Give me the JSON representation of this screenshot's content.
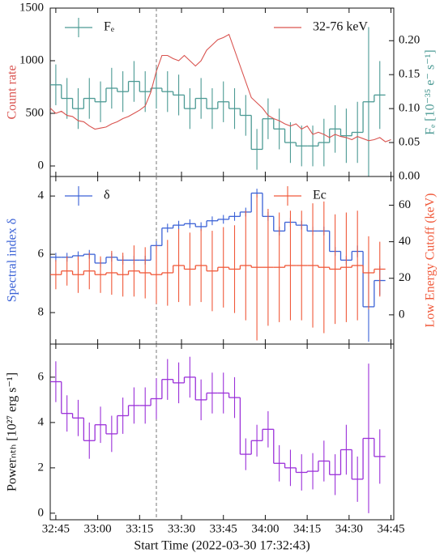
{
  "chart_data": [
    {
      "type": "line",
      "ylabel": "Count rate",
      "ylabel_color": "#d9534f",
      "y2label": "Fₑ [10⁻³⁵ e⁻ s⁻¹]",
      "y2label_color": "#4c9a94",
      "xlim": [
        0,
        123
      ],
      "xticks": [
        {
          "value": 2,
          "label": "32:45"
        },
        {
          "value": 17,
          "label": "33:00"
        },
        {
          "value": 32,
          "label": "33:15"
        },
        {
          "value": 47,
          "label": "33:30"
        },
        {
          "value": 62,
          "label": "33:45"
        },
        {
          "value": 77,
          "label": "34:00"
        },
        {
          "value": 92,
          "label": "34:15"
        },
        {
          "value": 107,
          "label": "34:30"
        },
        {
          "value": 122,
          "label": "34:45"
        }
      ],
      "ylim": [
        -100,
        1500
      ],
      "yticks": [
        0,
        500,
        1000,
        1500
      ],
      "y2lim": [
        0,
        0.248
      ],
      "y2ticks": [
        {
          "value": 0,
          "label": "0.00"
        },
        {
          "value": 0.05,
          "label": "0.05"
        },
        {
          "value": 0.1,
          "label": "0.10"
        },
        {
          "value": 0.15,
          "label": "0.15"
        },
        {
          "value": 0.2,
          "label": "0.20"
        }
      ],
      "vline": 38,
      "series": [
        {
          "name": "Fₑ",
          "type": "step",
          "color": "#4c9a94",
          "axis": "y2",
          "legend": "upper left",
          "bins": [
            0,
            4,
            8,
            12,
            16,
            20,
            24,
            28,
            32,
            36,
            40,
            44,
            48,
            52,
            56,
            60,
            64,
            68,
            72,
            76,
            80,
            84,
            88,
            92,
            96,
            100,
            104,
            108,
            112,
            116,
            120
          ],
          "values": [
            0.135,
            0.115,
            0.1,
            0.115,
            0.11,
            0.13,
            0.125,
            0.14,
            0.125,
            0.13,
            0.125,
            0.12,
            0.1,
            0.115,
            0.1,
            0.11,
            0.1,
            0.09,
            0.04,
            0.085,
            0.07,
            0.05,
            0.045,
            0.045,
            0.05,
            0.07,
            0.06,
            0.065,
            0.11,
            0.12
          ],
          "errors": [
            0.03,
            0.03,
            0.03,
            0.03,
            0.03,
            0.03,
            0.03,
            0.03,
            0.03,
            0.03,
            0.03,
            0.03,
            0.03,
            0.03,
            0.03,
            0.03,
            0.03,
            0.03,
            0.03,
            0.03,
            0.03,
            0.03,
            0.03,
            0.03,
            0.035,
            0.035,
            0.04,
            0.045,
            0.11,
            0.05
          ]
        },
        {
          "name": "32-76 keV",
          "type": "line",
          "color": "#d9534f",
          "legend": "upper right",
          "x": [
            0,
            2,
            4,
            6,
            8,
            10,
            12,
            14,
            16,
            18,
            20,
            22,
            24,
            26,
            28,
            30,
            32,
            34,
            36,
            38,
            40,
            42,
            44,
            46,
            48,
            50,
            52,
            54,
            56,
            58,
            60,
            62,
            64,
            66,
            68,
            70,
            72,
            74,
            76,
            78,
            80,
            82,
            84,
            86,
            88,
            90,
            92,
            94,
            96,
            98,
            100,
            102,
            104,
            106,
            108,
            110,
            112,
            114,
            116,
            118,
            120,
            122
          ],
          "values": [
            550,
            500,
            520,
            480,
            470,
            430,
            420,
            380,
            350,
            360,
            370,
            400,
            420,
            450,
            470,
            500,
            530,
            570,
            700,
            900,
            1050,
            1050,
            1020,
            1000,
            1050,
            1000,
            950,
            1000,
            1100,
            1150,
            1200,
            1220,
            1250,
            1100,
            950,
            800,
            650,
            600,
            550,
            480,
            450,
            430,
            400,
            380,
            400,
            350,
            380,
            300,
            320,
            300,
            270,
            300,
            280,
            270,
            250,
            280,
            260,
            240,
            250,
            270,
            230,
            250
          ]
        }
      ]
    },
    {
      "type": "step",
      "ylabel": "Spectral index δ",
      "ylabel_color": "#3b62d6",
      "y2label": "Low Energy Cutoff (keV)",
      "y2label_color": "#f0593a",
      "xlim": [
        0,
        123
      ],
      "xticks": [
        2,
        17,
        32,
        47,
        62,
        77,
        92,
        107,
        122
      ],
      "ylim": [
        3.33,
        9.08
      ],
      "invert": true,
      "yticks": [
        4,
        6,
        8
      ],
      "y2lim": [
        -16,
        75.7
      ],
      "y2ticks": [
        0,
        20,
        40,
        60
      ],
      "vline": 38,
      "series": [
        {
          "name": "δ",
          "type": "step",
          "color": "#3b62d6",
          "legend": "upper left",
          "bins": [
            0,
            4,
            8,
            12,
            16,
            20,
            24,
            28,
            32,
            36,
            40,
            44,
            48,
            52,
            56,
            60,
            64,
            68,
            72,
            76,
            80,
            84,
            88,
            92,
            96,
            100,
            104,
            108,
            112,
            116,
            120
          ],
          "values": [
            6.1,
            6.1,
            6.05,
            6.0,
            6.3,
            6.1,
            6.2,
            6.2,
            6.2,
            5.7,
            5.1,
            5.0,
            4.95,
            5.05,
            4.85,
            4.8,
            4.7,
            4.55,
            3.9,
            4.7,
            5.2,
            4.9,
            5.0,
            5.2,
            5.2,
            5.9,
            6.2,
            5.9,
            7.8,
            6.9
          ],
          "errors": [
            0.15,
            0.15,
            0.15,
            0.15,
            0.15,
            0.15,
            0.15,
            0.15,
            0.15,
            0.15,
            0.15,
            0.15,
            0.15,
            0.15,
            0.15,
            0.15,
            0.15,
            0.15,
            0.15,
            0.15,
            0.15,
            0.15,
            0.15,
            0.15,
            0.15,
            0.15,
            0.15,
            0.2,
            1.2,
            0.5
          ]
        },
        {
          "name": "Ec",
          "type": "step",
          "color": "#f0593a",
          "axis": "y2",
          "legend": "upper right",
          "bins": [
            0,
            4,
            8,
            12,
            16,
            20,
            24,
            28,
            32,
            36,
            40,
            44,
            48,
            52,
            56,
            60,
            64,
            68,
            72,
            76,
            80,
            84,
            88,
            92,
            96,
            100,
            104,
            108,
            112,
            116,
            120
          ],
          "values": [
            22,
            24,
            22,
            24,
            22,
            23,
            22,
            24,
            23,
            22,
            23,
            27,
            25,
            27,
            24,
            26,
            25,
            27,
            26,
            26,
            26,
            27,
            27,
            27,
            26,
            25,
            26,
            27,
            23,
            25
          ],
          "errors": [
            8,
            8,
            10,
            10,
            10,
            12,
            12,
            14,
            14,
            16,
            18,
            20,
            20,
            20,
            22,
            22,
            24,
            30,
            40,
            32,
            30,
            30,
            30,
            34,
            36,
            30,
            30,
            30,
            20,
            15
          ]
        }
      ]
    },
    {
      "type": "step",
      "ylabel": "Powerₙₜₕ [10²⁷ erg s⁻¹]",
      "ylabel_color": "#111111",
      "xlabel": "Start Time (2022-03-30 17:32:43)",
      "xlim": [
        0,
        123
      ],
      "xticks": [
        {
          "value": 2,
          "label": "32:45"
        },
        {
          "value": 17,
          "label": "33:00"
        },
        {
          "value": 32,
          "label": "33:15"
        },
        {
          "value": 47,
          "label": "33:30"
        },
        {
          "value": 62,
          "label": "33:45"
        },
        {
          "value": 77,
          "label": "34:00"
        },
        {
          "value": 92,
          "label": "34:15"
        },
        {
          "value": 107,
          "label": "34:30"
        },
        {
          "value": 122,
          "label": "34:45"
        }
      ],
      "ylim": [
        -0.29,
        7.46
      ],
      "yticks": [
        0,
        2,
        4,
        6
      ],
      "vline": 38,
      "series": [
        {
          "type": "step",
          "color": "#9b30d9",
          "bins": [
            0,
            4,
            8,
            12,
            16,
            20,
            24,
            28,
            32,
            36,
            40,
            44,
            48,
            52,
            56,
            60,
            64,
            68,
            72,
            76,
            80,
            84,
            88,
            92,
            96,
            100,
            104,
            108,
            112,
            116,
            120
          ],
          "values": [
            5.8,
            4.4,
            4.2,
            3.2,
            3.9,
            3.5,
            4.3,
            4.75,
            4.75,
            5.05,
            5.9,
            5.75,
            6.0,
            5.0,
            5.3,
            5.3,
            5.1,
            2.6,
            3.2,
            3.7,
            2.2,
            2.0,
            1.8,
            1.85,
            2.3,
            1.7,
            2.8,
            1.5,
            3.3,
            2.5
          ],
          "errors": [
            0.9,
            0.8,
            0.8,
            0.8,
            0.8,
            0.8,
            0.8,
            0.8,
            0.8,
            0.9,
            0.9,
            0.9,
            0.9,
            0.9,
            0.9,
            0.9,
            0.9,
            0.7,
            0.7,
            0.8,
            0.8,
            0.8,
            0.8,
            0.8,
            0.9,
            0.9,
            1.1,
            1.0,
            3.3,
            1.2
          ]
        }
      ]
    }
  ]
}
